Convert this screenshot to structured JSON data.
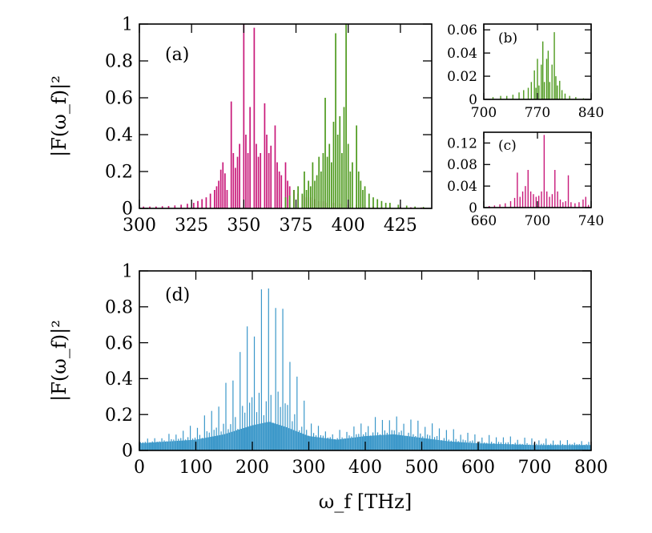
{
  "colors": {
    "magenta": "#c8197a",
    "green": "#4e9a1e",
    "blue": "#3a97c9",
    "axis": "#000000"
  },
  "chart_data": [
    {
      "id": "a",
      "type": "bar",
      "tag": "(a)",
      "ylabel": "|F(ω_f)|²",
      "xlim": [
        300,
        440
      ],
      "ylim": [
        0,
        1
      ],
      "xticks": [
        "300",
        "325",
        "350",
        "375",
        "400",
        "425"
      ],
      "yticks": [
        "0",
        "0.2",
        "0.4",
        "0.6",
        "0.8",
        "1"
      ],
      "series": [
        {
          "color": "magenta",
          "points": [
            [
              302,
              0.01
            ],
            [
              305,
              0.01
            ],
            [
              308,
              0.01
            ],
            [
              311,
              0.012
            ],
            [
              314,
              0.013
            ],
            [
              317,
              0.016
            ],
            [
              320,
              0.02
            ],
            [
              323,
              0.025
            ],
            [
              326,
              0.03
            ],
            [
              328,
              0.04
            ],
            [
              330,
              0.05
            ],
            [
              332,
              0.06
            ],
            [
              334,
              0.08
            ],
            [
              336,
              0.1
            ],
            [
              337,
              0.12
            ],
            [
              338,
              0.15
            ],
            [
              339,
              0.21
            ],
            [
              340,
              0.25
            ],
            [
              341,
              0.19
            ],
            [
              342,
              0.1
            ],
            [
              344,
              0.58
            ],
            [
              345,
              0.3
            ],
            [
              346,
              0.22
            ],
            [
              347,
              0.28
            ],
            [
              348,
              0.35
            ],
            [
              350,
              1.0
            ],
            [
              351,
              0.4
            ],
            [
              352,
              0.3
            ],
            [
              353,
              0.55
            ],
            [
              355,
              0.98
            ],
            [
              356,
              0.35
            ],
            [
              357,
              0.28
            ],
            [
              358,
              0.3
            ],
            [
              360,
              0.57
            ],
            [
              361,
              0.4
            ],
            [
              362,
              0.3
            ],
            [
              363,
              0.34
            ],
            [
              365,
              0.45
            ],
            [
              366,
              0.25
            ],
            [
              367,
              0.2
            ],
            [
              368,
              0.18
            ],
            [
              370,
              0.25
            ],
            [
              371,
              0.15
            ],
            [
              372,
              0.12
            ],
            [
              374,
              0.1
            ],
            [
              376,
              0.08
            ],
            [
              378,
              0.07
            ],
            [
              380,
              0.06
            ],
            [
              382,
              0.06
            ],
            [
              384,
              0.05
            ],
            [
              386,
              0.04
            ],
            [
              388,
              0.04
            ],
            [
              390,
              0.03
            ],
            [
              393,
              0.03
            ],
            [
              396,
              0.025
            ],
            [
              400,
              0.02
            ],
            [
              404,
              0.02
            ],
            [
              408,
              0.015
            ],
            [
              412,
              0.012
            ],
            [
              416,
              0.01
            ],
            [
              420,
              0.01
            ],
            [
              425,
              0.008
            ],
            [
              430,
              0.006
            ],
            [
              435,
              0.005
            ]
          ]
        },
        {
          "color": "green",
          "points": [
            [
              370,
              0.06
            ],
            [
              372,
              0.07
            ],
            [
              374,
              0.1
            ],
            [
              376,
              0.12
            ],
            [
              378,
              0.08
            ],
            [
              379,
              0.2
            ],
            [
              380,
              0.1
            ],
            [
              381,
              0.15
            ],
            [
              382,
              0.12
            ],
            [
              383,
              0.25
            ],
            [
              384,
              0.15
            ],
            [
              385,
              0.18
            ],
            [
              386,
              0.28
            ],
            [
              387,
              0.2
            ],
            [
              388,
              0.3
            ],
            [
              389,
              0.6
            ],
            [
              390,
              0.28
            ],
            [
              391,
              0.35
            ],
            [
              392,
              0.25
            ],
            [
              393,
              0.47
            ],
            [
              394,
              0.95
            ],
            [
              395,
              0.4
            ],
            [
              396,
              0.5
            ],
            [
              397,
              0.3
            ],
            [
              398,
              0.55
            ],
            [
              399,
              1.0
            ],
            [
              400,
              0.35
            ],
            [
              401,
              0.2
            ],
            [
              402,
              0.25
            ],
            [
              404,
              0.45
            ],
            [
              405,
              0.2
            ],
            [
              406,
              0.15
            ],
            [
              407,
              0.1
            ],
            [
              408,
              0.12
            ],
            [
              410,
              0.08
            ],
            [
              412,
              0.06
            ],
            [
              414,
              0.05
            ],
            [
              416,
              0.04
            ],
            [
              418,
              0.03
            ],
            [
              420,
              0.03
            ],
            [
              424,
              0.02
            ],
            [
              428,
              0.015
            ],
            [
              432,
              0.01
            ],
            [
              436,
              0.008
            ]
          ]
        }
      ]
    },
    {
      "id": "b",
      "type": "bar",
      "tag": "(b)",
      "xlim": [
        700,
        840
      ],
      "ylim": [
        0,
        0.065
      ],
      "xticks": [
        "700",
        "770",
        "840"
      ],
      "yticks": [
        "0",
        "0.02",
        "0.04",
        "0.06"
      ],
      "series": [
        {
          "color": "green",
          "points": [
            [
              712,
              0.002
            ],
            [
              722,
              0.003
            ],
            [
              730,
              0.003
            ],
            [
              738,
              0.004
            ],
            [
              746,
              0.006
            ],
            [
              752,
              0.008
            ],
            [
              758,
              0.01
            ],
            [
              762,
              0.015
            ],
            [
              766,
              0.025
            ],
            [
              768,
              0.01
            ],
            [
              770,
              0.035
            ],
            [
              772,
              0.012
            ],
            [
              775,
              0.03
            ],
            [
              777,
              0.05
            ],
            [
              779,
              0.015
            ],
            [
              782,
              0.035
            ],
            [
              784,
              0.042
            ],
            [
              786,
              0.015
            ],
            [
              789,
              0.03
            ],
            [
              792,
              0.058
            ],
            [
              794,
              0.02
            ],
            [
              796,
              0.012
            ],
            [
              799,
              0.016
            ],
            [
              802,
              0.008
            ],
            [
              806,
              0.005
            ],
            [
              812,
              0.003
            ],
            [
              820,
              0.002
            ],
            [
              830,
              0.001
            ]
          ]
        }
      ]
    },
    {
      "id": "c",
      "type": "bar",
      "tag": "(c)",
      "xlim": [
        660,
        740
      ],
      "ylim": [
        0,
        0.14
      ],
      "xticks": [
        "660",
        "700",
        "740"
      ],
      "yticks": [
        "0",
        "0.04",
        "0.08",
        "0.12"
      ],
      "series": [
        {
          "color": "magenta",
          "points": [
            [
              664,
              0.003
            ],
            [
              668,
              0.004
            ],
            [
              672,
              0.006
            ],
            [
              676,
              0.008
            ],
            [
              680,
              0.012
            ],
            [
              683,
              0.018
            ],
            [
              685,
              0.065
            ],
            [
              687,
              0.02
            ],
            [
              689,
              0.03
            ],
            [
              691,
              0.04
            ],
            [
              693,
              0.07
            ],
            [
              695,
              0.03
            ],
            [
              697,
              0.025
            ],
            [
              699,
              0.02
            ],
            [
              701,
              0.022
            ],
            [
              703,
              0.03
            ],
            [
              705,
              0.135
            ],
            [
              707,
              0.03
            ],
            [
              709,
              0.02
            ],
            [
              711,
              0.025
            ],
            [
              713,
              0.07
            ],
            [
              715,
              0.03
            ],
            [
              717,
              0.015
            ],
            [
              719,
              0.01
            ],
            [
              721,
              0.012
            ],
            [
              723,
              0.06
            ],
            [
              725,
              0.01
            ],
            [
              728,
              0.008
            ],
            [
              731,
              0.01
            ],
            [
              734,
              0.015
            ],
            [
              736,
              0.02
            ],
            [
              738,
              0.005
            ]
          ]
        }
      ]
    },
    {
      "id": "d",
      "type": "bar",
      "tag": "(d)",
      "ylabel": "|F(ω_f)|²",
      "xlabel": "ω_f [THz]",
      "xlim": [
        0,
        800
      ],
      "ylim": [
        0,
        1
      ],
      "xticks": [
        "0",
        "100",
        "200",
        "300",
        "400",
        "500",
        "600",
        "700",
        "800"
      ],
      "yticks": [
        "0",
        "0.2",
        "0.4",
        "0.6",
        "0.8",
        "1"
      ],
      "series": [
        {
          "color": "blue",
          "baseline": [
            [
              0,
              0.04
            ],
            [
              50,
              0.05
            ],
            [
              100,
              0.06
            ],
            [
              150,
              0.09
            ],
            [
              200,
              0.14
            ],
            [
              230,
              0.16
            ],
            [
              260,
              0.13
            ],
            [
              300,
              0.08
            ],
            [
              350,
              0.06
            ],
            [
              400,
              0.08
            ],
            [
              450,
              0.09
            ],
            [
              500,
              0.07
            ],
            [
              550,
              0.05
            ],
            [
              600,
              0.04
            ],
            [
              700,
              0.03
            ],
            [
              800,
              0.03
            ]
          ],
          "envelope": [
            [
              0,
              0.06
            ],
            [
              40,
              0.08
            ],
            [
              80,
              0.12
            ],
            [
              110,
              0.18
            ],
            [
              140,
              0.28
            ],
            [
              170,
              0.5
            ],
            [
              200,
              0.8
            ],
            [
              230,
              1.0
            ],
            [
              250,
              0.85
            ],
            [
              270,
              0.55
            ],
            [
              290,
              0.3
            ],
            [
              310,
              0.15
            ],
            [
              340,
              0.1
            ],
            [
              380,
              0.14
            ],
            [
              420,
              0.19
            ],
            [
              460,
              0.19
            ],
            [
              500,
              0.17
            ],
            [
              540,
              0.13
            ],
            [
              600,
              0.09
            ],
            [
              650,
              0.08
            ],
            [
              700,
              0.07
            ],
            [
              750,
              0.06
            ],
            [
              800,
              0.05
            ]
          ]
        }
      ]
    }
  ]
}
